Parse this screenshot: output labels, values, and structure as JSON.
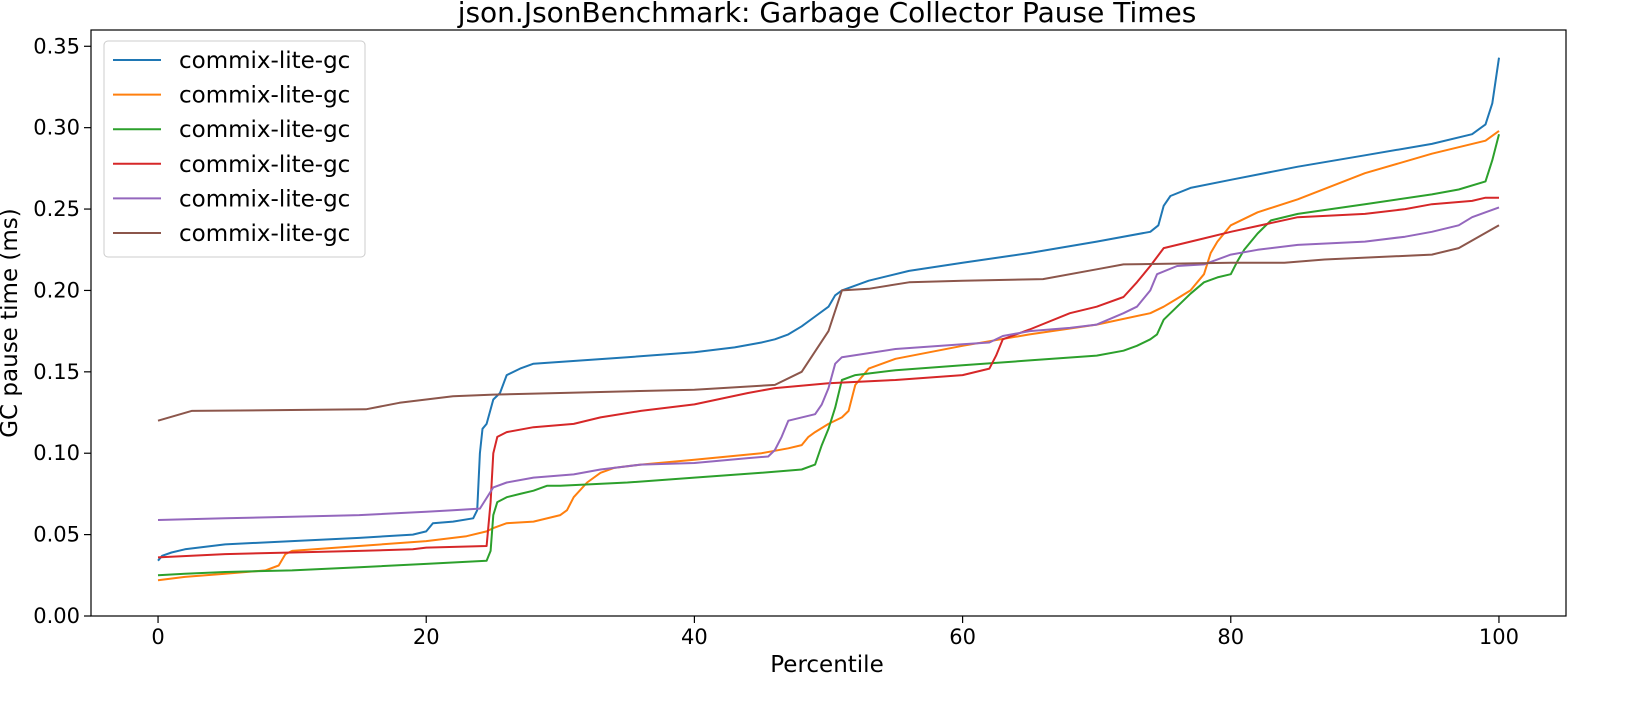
{
  "chart_data": {
    "type": "line",
    "title": "json.JsonBenchmark: Garbage Collector Pause Times",
    "xlabel": "Percentile",
    "ylabel": "GC pause time (ms)",
    "xlim": [
      -5,
      105
    ],
    "ylim": [
      0.0,
      0.36
    ],
    "xticks": [
      0,
      20,
      40,
      60,
      80,
      100
    ],
    "xtick_labels": [
      "0",
      "20",
      "40",
      "60",
      "80",
      "100"
    ],
    "yticks": [
      0.0,
      0.05,
      0.1,
      0.15,
      0.2,
      0.25,
      0.3,
      0.35
    ],
    "ytick_labels": [
      "0.00",
      "0.05",
      "0.10",
      "0.15",
      "0.20",
      "0.25",
      "0.30",
      "0.35"
    ],
    "grid": false,
    "legend": "top-left",
    "series": [
      {
        "name": "commix-lite-gc",
        "color": "#1f77b4",
        "points": [
          [
            0,
            0.034
          ],
          [
            0.3,
            0.037
          ],
          [
            1,
            0.039
          ],
          [
            2,
            0.041
          ],
          [
            5,
            0.044
          ],
          [
            10,
            0.046
          ],
          [
            15,
            0.048
          ],
          [
            19,
            0.05
          ],
          [
            20,
            0.052
          ],
          [
            20.5,
            0.057
          ],
          [
            22,
            0.058
          ],
          [
            23.5,
            0.06
          ],
          [
            23.8,
            0.065
          ],
          [
            24,
            0.1
          ],
          [
            24.2,
            0.115
          ],
          [
            24.5,
            0.118
          ],
          [
            25,
            0.133
          ],
          [
            25.5,
            0.137
          ],
          [
            26,
            0.148
          ],
          [
            27,
            0.152
          ],
          [
            28,
            0.155
          ],
          [
            35,
            0.159
          ],
          [
            40,
            0.162
          ],
          [
            43,
            0.165
          ],
          [
            45,
            0.168
          ],
          [
            46,
            0.17
          ],
          [
            47,
            0.173
          ],
          [
            48,
            0.178
          ],
          [
            49,
            0.184
          ],
          [
            50,
            0.19
          ],
          [
            50.5,
            0.197
          ],
          [
            51,
            0.2
          ],
          [
            53,
            0.206
          ],
          [
            56,
            0.212
          ],
          [
            60,
            0.217
          ],
          [
            65,
            0.223
          ],
          [
            70,
            0.23
          ],
          [
            74,
            0.236
          ],
          [
            74.6,
            0.24
          ],
          [
            75,
            0.252
          ],
          [
            75.5,
            0.258
          ],
          [
            77,
            0.263
          ],
          [
            80,
            0.268
          ],
          [
            85,
            0.276
          ],
          [
            90,
            0.283
          ],
          [
            95,
            0.29
          ],
          [
            98,
            0.296
          ],
          [
            99,
            0.302
          ],
          [
            99.5,
            0.315
          ],
          [
            100,
            0.343
          ]
        ]
      },
      {
        "name": "commix-lite-gc",
        "color": "#ff7f0e",
        "points": [
          [
            0,
            0.022
          ],
          [
            2,
            0.024
          ],
          [
            5,
            0.026
          ],
          [
            8,
            0.028
          ],
          [
            9,
            0.031
          ],
          [
            9.5,
            0.038
          ],
          [
            10,
            0.04
          ],
          [
            15,
            0.043
          ],
          [
            20,
            0.046
          ],
          [
            23,
            0.049
          ],
          [
            24.5,
            0.052
          ],
          [
            25,
            0.054
          ],
          [
            26,
            0.057
          ],
          [
            28,
            0.058
          ],
          [
            30,
            0.062
          ],
          [
            30.5,
            0.065
          ],
          [
            31,
            0.073
          ],
          [
            32,
            0.082
          ],
          [
            33,
            0.088
          ],
          [
            34,
            0.091
          ],
          [
            36,
            0.093
          ],
          [
            40,
            0.096
          ],
          [
            45,
            0.1
          ],
          [
            47,
            0.103
          ],
          [
            48,
            0.105
          ],
          [
            48.5,
            0.11
          ],
          [
            49,
            0.113
          ],
          [
            50,
            0.118
          ],
          [
            51,
            0.122
          ],
          [
            51.5,
            0.126
          ],
          [
            52,
            0.142
          ],
          [
            53,
            0.152
          ],
          [
            55,
            0.158
          ],
          [
            60,
            0.166
          ],
          [
            65,
            0.173
          ],
          [
            70,
            0.179
          ],
          [
            74,
            0.186
          ],
          [
            75,
            0.19
          ],
          [
            76,
            0.195
          ],
          [
            77,
            0.2
          ],
          [
            78,
            0.21
          ],
          [
            78.5,
            0.223
          ],
          [
            79,
            0.23
          ],
          [
            80,
            0.24
          ],
          [
            82,
            0.248
          ],
          [
            85,
            0.256
          ],
          [
            90,
            0.272
          ],
          [
            95,
            0.284
          ],
          [
            99,
            0.292
          ],
          [
            100,
            0.298
          ]
        ]
      },
      {
        "name": "commix-lite-gc",
        "color": "#2ca02c",
        "points": [
          [
            0,
            0.025
          ],
          [
            2,
            0.026
          ],
          [
            5,
            0.027
          ],
          [
            10,
            0.028
          ],
          [
            15,
            0.03
          ],
          [
            20,
            0.032
          ],
          [
            24.5,
            0.034
          ],
          [
            24.8,
            0.04
          ],
          [
            25,
            0.062
          ],
          [
            25.3,
            0.07
          ],
          [
            26,
            0.073
          ],
          [
            27,
            0.075
          ],
          [
            28,
            0.077
          ],
          [
            29,
            0.08
          ],
          [
            30,
            0.08
          ],
          [
            35,
            0.082
          ],
          [
            40,
            0.085
          ],
          [
            45,
            0.088
          ],
          [
            48,
            0.09
          ],
          [
            49,
            0.093
          ],
          [
            49.5,
            0.105
          ],
          [
            50,
            0.115
          ],
          [
            50.5,
            0.128
          ],
          [
            51,
            0.145
          ],
          [
            52,
            0.148
          ],
          [
            55,
            0.151
          ],
          [
            60,
            0.154
          ],
          [
            65,
            0.157
          ],
          [
            70,
            0.16
          ],
          [
            72,
            0.163
          ],
          [
            73,
            0.166
          ],
          [
            74,
            0.17
          ],
          [
            74.5,
            0.173
          ],
          [
            75,
            0.182
          ],
          [
            76,
            0.19
          ],
          [
            77,
            0.198
          ],
          [
            78,
            0.205
          ],
          [
            79,
            0.208
          ],
          [
            80,
            0.21
          ],
          [
            80.5,
            0.218
          ],
          [
            81,
            0.225
          ],
          [
            82,
            0.235
          ],
          [
            83,
            0.243
          ],
          [
            85,
            0.247
          ],
          [
            90,
            0.253
          ],
          [
            95,
            0.259
          ],
          [
            97,
            0.262
          ],
          [
            99,
            0.267
          ],
          [
            99.5,
            0.28
          ],
          [
            100,
            0.296
          ]
        ]
      },
      {
        "name": "commix-lite-gc",
        "color": "#d62728",
        "points": [
          [
            0,
            0.036
          ],
          [
            5,
            0.038
          ],
          [
            10,
            0.039
          ],
          [
            15,
            0.04
          ],
          [
            19,
            0.041
          ],
          [
            20,
            0.042
          ],
          [
            24.5,
            0.043
          ],
          [
            24.8,
            0.07
          ],
          [
            25,
            0.1
          ],
          [
            25.3,
            0.11
          ],
          [
            26,
            0.113
          ],
          [
            28,
            0.116
          ],
          [
            31,
            0.118
          ],
          [
            33,
            0.122
          ],
          [
            36,
            0.126
          ],
          [
            40,
            0.13
          ],
          [
            44,
            0.137
          ],
          [
            46,
            0.14
          ],
          [
            50,
            0.143
          ],
          [
            55,
            0.145
          ],
          [
            60,
            0.148
          ],
          [
            62,
            0.152
          ],
          [
            62.5,
            0.16
          ],
          [
            63,
            0.17
          ],
          [
            65,
            0.176
          ],
          [
            68,
            0.186
          ],
          [
            70,
            0.19
          ],
          [
            72,
            0.196
          ],
          [
            73,
            0.205
          ],
          [
            74,
            0.215
          ],
          [
            75,
            0.226
          ],
          [
            78,
            0.232
          ],
          [
            80,
            0.236
          ],
          [
            85,
            0.245
          ],
          [
            90,
            0.247
          ],
          [
            93,
            0.25
          ],
          [
            95,
            0.253
          ],
          [
            98,
            0.255
          ],
          [
            99,
            0.257
          ],
          [
            100,
            0.257
          ]
        ]
      },
      {
        "name": "commix-lite-gc",
        "color": "#9467bd",
        "points": [
          [
            0,
            0.059
          ],
          [
            5,
            0.06
          ],
          [
            10,
            0.061
          ],
          [
            15,
            0.062
          ],
          [
            20,
            0.064
          ],
          [
            22,
            0.065
          ],
          [
            24,
            0.066
          ],
          [
            25,
            0.079
          ],
          [
            26,
            0.082
          ],
          [
            28,
            0.085
          ],
          [
            31,
            0.087
          ],
          [
            33,
            0.09
          ],
          [
            36,
            0.093
          ],
          [
            40,
            0.094
          ],
          [
            44,
            0.097
          ],
          [
            45.5,
            0.098
          ],
          [
            46,
            0.102
          ],
          [
            46.5,
            0.11
          ],
          [
            47,
            0.12
          ],
          [
            49,
            0.124
          ],
          [
            49.5,
            0.13
          ],
          [
            50,
            0.14
          ],
          [
            50.5,
            0.155
          ],
          [
            51,
            0.159
          ],
          [
            55,
            0.164
          ],
          [
            60,
            0.167
          ],
          [
            62,
            0.168
          ],
          [
            63,
            0.172
          ],
          [
            65,
            0.175
          ],
          [
            68,
            0.177
          ],
          [
            70,
            0.179
          ],
          [
            72,
            0.186
          ],
          [
            73,
            0.19
          ],
          [
            74,
            0.2
          ],
          [
            74.5,
            0.21
          ],
          [
            76,
            0.215
          ],
          [
            78,
            0.216
          ],
          [
            80,
            0.222
          ],
          [
            82,
            0.225
          ],
          [
            85,
            0.228
          ],
          [
            90,
            0.23
          ],
          [
            93,
            0.233
          ],
          [
            95,
            0.236
          ],
          [
            97,
            0.24
          ],
          [
            98,
            0.245
          ],
          [
            99,
            0.248
          ],
          [
            100,
            0.251
          ]
        ]
      },
      {
        "name": "commix-lite-gc",
        "color": "#8c564b",
        "points": [
          [
            0,
            0.12
          ],
          [
            2.5,
            0.126
          ],
          [
            15.5,
            0.127
          ],
          [
            18,
            0.131
          ],
          [
            20,
            0.133
          ],
          [
            22,
            0.135
          ],
          [
            25,
            0.136
          ],
          [
            30,
            0.137
          ],
          [
            40,
            0.139
          ],
          [
            46,
            0.142
          ],
          [
            48,
            0.15
          ],
          [
            50,
            0.175
          ],
          [
            51,
            0.2
          ],
          [
            53,
            0.201
          ],
          [
            56,
            0.205
          ],
          [
            60,
            0.206
          ],
          [
            66,
            0.207
          ],
          [
            70,
            0.213
          ],
          [
            72,
            0.216
          ],
          [
            80,
            0.217
          ],
          [
            84,
            0.217
          ],
          [
            87,
            0.219
          ],
          [
            95,
            0.222
          ],
          [
            97,
            0.226
          ],
          [
            100,
            0.24
          ]
        ]
      }
    ]
  }
}
